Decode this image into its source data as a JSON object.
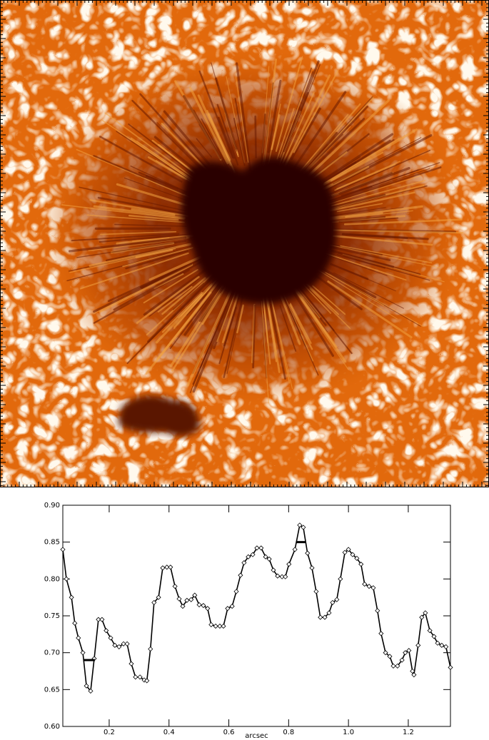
{
  "chart_data": {
    "type": "line",
    "xlabel": "arcsec",
    "x": [
      0.045,
      0.057,
      0.074,
      0.085,
      0.097,
      0.112,
      0.124,
      0.138,
      0.15,
      0.164,
      0.176,
      0.19,
      0.205,
      0.219,
      0.233,
      0.248,
      0.26,
      0.274,
      0.288,
      0.303,
      0.317,
      0.326,
      0.338,
      0.35,
      0.365,
      0.379,
      0.393,
      0.405,
      0.42,
      0.434,
      0.446,
      0.46,
      0.474,
      0.486,
      0.501,
      0.515,
      0.529,
      0.541,
      0.556,
      0.57,
      0.582,
      0.596,
      0.611,
      0.625,
      0.639,
      0.651,
      0.665,
      0.68,
      0.694,
      0.708,
      0.723,
      0.735,
      0.749,
      0.763,
      0.778,
      0.789,
      0.801,
      0.821,
      0.837,
      0.849,
      0.863,
      0.878,
      0.892,
      0.906,
      0.921,
      0.935,
      0.947,
      0.961,
      0.973,
      0.988,
      1.0,
      1.014,
      1.028,
      1.042,
      1.054,
      1.069,
      1.083,
      1.097,
      1.109,
      1.124,
      1.138,
      1.15,
      1.164,
      1.179,
      1.19,
      1.202,
      1.214,
      1.219,
      1.233,
      1.245,
      1.257,
      1.272,
      1.286,
      1.298,
      1.312,
      1.326,
      1.341
    ],
    "values": [
      0.84,
      0.8,
      0.775,
      0.74,
      0.72,
      0.7,
      0.655,
      0.648,
      0.692,
      0.745,
      0.745,
      0.73,
      0.72,
      0.71,
      0.708,
      0.712,
      0.712,
      0.685,
      0.667,
      0.667,
      0.663,
      0.662,
      0.705,
      0.768,
      0.775,
      0.815,
      0.816,
      0.816,
      0.79,
      0.773,
      0.763,
      0.771,
      0.772,
      0.778,
      0.765,
      0.764,
      0.76,
      0.738,
      0.736,
      0.736,
      0.736,
      0.76,
      0.763,
      0.783,
      0.805,
      0.822,
      0.83,
      0.833,
      0.842,
      0.842,
      0.83,
      0.827,
      0.812,
      0.804,
      0.803,
      0.803,
      0.82,
      0.84,
      0.873,
      0.87,
      0.835,
      0.815,
      0.783,
      0.748,
      0.748,
      0.754,
      0.768,
      0.772,
      0.8,
      0.836,
      0.84,
      0.833,
      0.828,
      0.82,
      0.793,
      0.79,
      0.788,
      0.757,
      0.726,
      0.7,
      0.695,
      0.682,
      0.682,
      0.69,
      0.7,
      0.703,
      0.675,
      0.67,
      0.71,
      0.748,
      0.754,
      0.73,
      0.722,
      0.713,
      0.71,
      0.708,
      0.68
    ],
    "color": "#000000",
    "levels": [
      {
        "x": [
          0.114,
          0.152
        ],
        "value": 0.69
      },
      {
        "x": [
          0.825,
          0.856
        ],
        "value": 0.85
      }
    ],
    "xlim": [
      0.045,
      1.341
    ],
    "ylim": [
      0.6,
      0.9
    ],
    "xticks": [
      0.2,
      0.4,
      0.6,
      0.8,
      {
        "value": 1,
        "label": "1.0"
      },
      1.2
    ],
    "yticks": [
      {
        "value": 0.6,
        "label": "0.60"
      },
      0.65,
      {
        "value": 0.7,
        "label": "0.70"
      },
      0.75,
      {
        "value": 0.8,
        "label": "0.80"
      },
      0.85,
      {
        "value": 0.9,
        "label": "0.90"
      }
    ]
  }
}
